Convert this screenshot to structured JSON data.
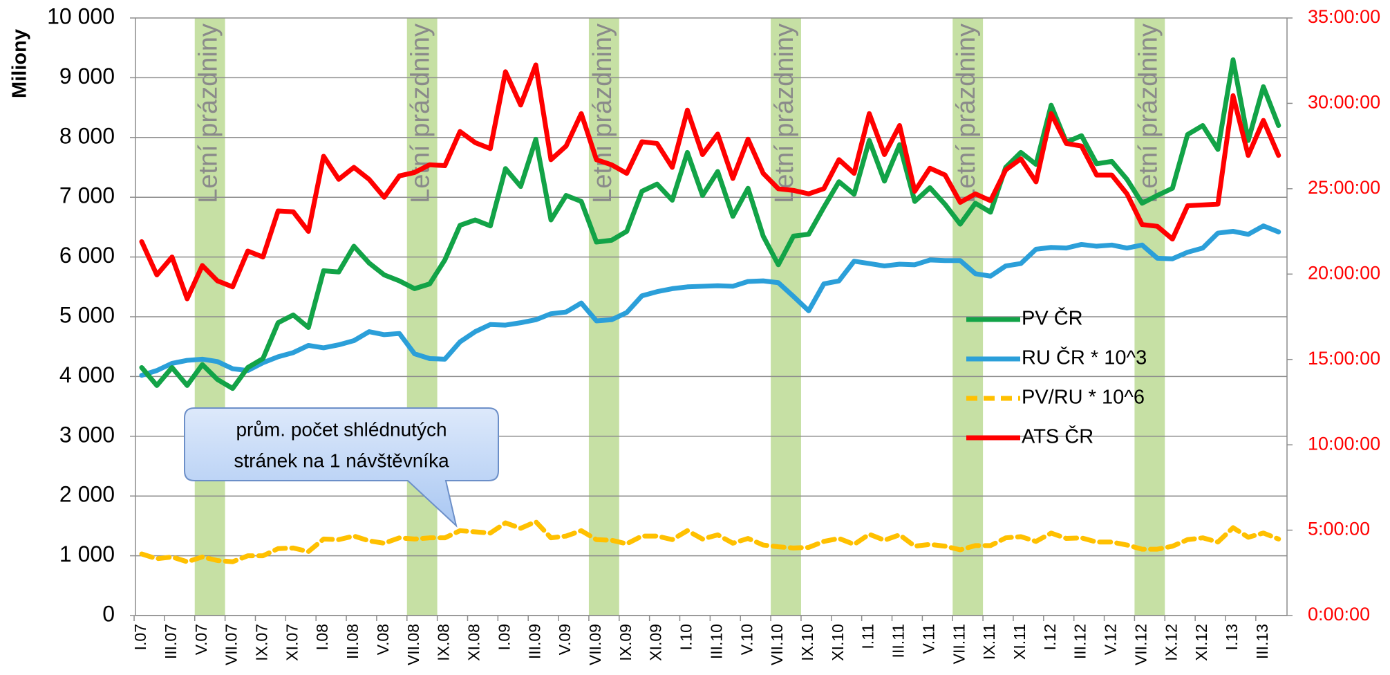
{
  "chart_data": {
    "type": "line",
    "y_label": "Miliony",
    "categories": [
      "I.07",
      null,
      "III.07",
      null,
      "V.07",
      null,
      "VII.07",
      null,
      "IX.07",
      null,
      "XI.07",
      null,
      "I.08",
      null,
      "III.08",
      null,
      "V.08",
      null,
      "VII.08",
      null,
      "IX.08",
      null,
      "XI.08",
      null,
      "I.09",
      null,
      "III.09",
      null,
      "V.09",
      null,
      "VII.09",
      null,
      "IX.09",
      null,
      "XI.09",
      null,
      "I.10",
      null,
      "III.10",
      null,
      "V.10",
      null,
      "VII.10",
      null,
      "IX.10",
      null,
      "XI.10",
      null,
      "I.11",
      null,
      "III.11",
      null,
      "V.11",
      null,
      "VII.11",
      null,
      "IX.11",
      null,
      "XI.11",
      null,
      "I.12",
      null,
      "III.12",
      null,
      "V.12",
      null,
      "VII.12",
      null,
      "IX.12",
      null,
      "XI.12",
      null,
      "I.13",
      null,
      "III.13",
      null
    ],
    "ylim": [
      0,
      10000
    ],
    "yticks": [
      0,
      {
        "value": 1000,
        "label": "1 000"
      },
      {
        "value": 2000,
        "label": "2 000"
      },
      {
        "value": 3000,
        "label": "3 000"
      },
      {
        "value": 4000,
        "label": "4 000"
      },
      {
        "value": 5000,
        "label": "5 000"
      },
      {
        "value": 6000,
        "label": "6 000"
      },
      {
        "value": 7000,
        "label": "7 000"
      },
      {
        "value": 8000,
        "label": "8 000"
      },
      {
        "value": 9000,
        "label": "9 000"
      },
      {
        "value": 10000,
        "label": "10 000"
      }
    ],
    "y2lim": [
      0,
      35
    ],
    "y2ticks": [
      {
        "value": 0,
        "label": "0:00:00"
      },
      {
        "value": 5,
        "label": "5:00:00"
      },
      {
        "value": 10,
        "label": "10:00:00"
      },
      {
        "value": 15,
        "label": "15:00:00"
      },
      {
        "value": 20,
        "label": "20:00:00"
      },
      {
        "value": 25,
        "label": "25:00:00"
      },
      {
        "value": 30,
        "label": "30:00:00"
      },
      {
        "value": 35,
        "label": "35:00:00"
      }
    ],
    "y2_color": "#ff0000",
    "grid": true,
    "legend": "center-right",
    "bands": [
      {
        "label": "Letní prázdniny",
        "start": 4,
        "end": 5
      },
      {
        "label": "Letní prázdniny",
        "start": 18,
        "end": 19
      },
      {
        "label": "Letní prázdniny",
        "start": 30,
        "end": 31
      },
      {
        "label": "Letní prázdniny",
        "start": 42,
        "end": 43
      },
      {
        "label": "Letní prázdniny",
        "start": 54,
        "end": 55
      },
      {
        "label": "Letní prázdniny",
        "start": 66,
        "end": 67
      }
    ],
    "band_color": "#c6e0a4",
    "annotation": [
      "prům. počet shlédnutých",
      "stránek na 1 návštěvníka"
    ],
    "series": [
      {
        "name": "PV ČR",
        "color": "#12a347",
        "style": "solid",
        "values": [
          4150,
          3850,
          4150,
          3850,
          4200,
          3950,
          3800,
          4150,
          4300,
          4900,
          5030,
          4820,
          5770,
          5750,
          6180,
          5900,
          5700,
          5600,
          5470,
          5550,
          5950,
          6530,
          6620,
          6520,
          7480,
          7180,
          7970,
          6620,
          7030,
          6930,
          6250,
          6280,
          6430,
          7100,
          7220,
          6950,
          7750,
          7030,
          7430,
          6680,
          7150,
          6350,
          5870,
          6350,
          6380,
          6830,
          7260,
          7050,
          7950,
          7270,
          7880,
          6930,
          7160,
          6880,
          6550,
          6900,
          6750,
          7500,
          7750,
          7550,
          8540,
          7920,
          8030,
          7560,
          7600,
          7300,
          6900,
          7030,
          7150,
          8050,
          8200,
          7800,
          9300,
          7950,
          8850,
          8200
        ]
      },
      {
        "name": "RU ČR * 10^3",
        "color": "#2b9fd9",
        "style": "solid",
        "values": [
          4020,
          4100,
          4220,
          4270,
          4290,
          4250,
          4130,
          4100,
          4230,
          4330,
          4400,
          4520,
          4480,
          4530,
          4600,
          4750,
          4700,
          4720,
          4380,
          4300,
          4290,
          4580,
          4750,
          4870,
          4860,
          4900,
          4950,
          5050,
          5080,
          5230,
          4930,
          4950,
          5070,
          5350,
          5420,
          5470,
          5500,
          5510,
          5520,
          5510,
          5590,
          5600,
          5570,
          5340,
          5100,
          5550,
          5600,
          5930,
          5890,
          5850,
          5880,
          5870,
          5950,
          5940,
          5940,
          5720,
          5680,
          5850,
          5890,
          6130,
          6160,
          6150,
          6210,
          6180,
          6200,
          6150,
          6200,
          5980,
          5970,
          6080,
          6150,
          6400,
          6430,
          6380,
          6520,
          6420
        ]
      },
      {
        "name": "PV/RU * 10^6",
        "color": "#ffc000",
        "style": "dashed",
        "values": [
          1030,
          950,
          980,
          900,
          980,
          920,
          900,
          1000,
          1000,
          1120,
          1130,
          1070,
          1280,
          1270,
          1330,
          1250,
          1210,
          1300,
          1280,
          1300,
          1300,
          1420,
          1400,
          1380,
          1550,
          1460,
          1570,
          1300,
          1330,
          1420,
          1270,
          1260,
          1200,
          1330,
          1330,
          1270,
          1420,
          1280,
          1350,
          1210,
          1290,
          1180,
          1150,
          1130,
          1140,
          1240,
          1290,
          1190,
          1360,
          1260,
          1350,
          1160,
          1190,
          1160,
          1100,
          1170,
          1170,
          1300,
          1320,
          1240,
          1380,
          1290,
          1300,
          1230,
          1230,
          1180,
          1110,
          1110,
          1160,
          1270,
          1300,
          1230,
          1470,
          1310,
          1380,
          1280
        ]
      },
      {
        "name": "ATS ČR",
        "color": "#ff0000",
        "style": "solid",
        "axis": "y2",
        "values": [
          21.9,
          19.95,
          21.0,
          18.55,
          20.5,
          19.6,
          19.25,
          21.35,
          21.0,
          23.7,
          23.65,
          22.5,
          26.9,
          25.55,
          26.25,
          25.55,
          24.5,
          25.75,
          25.95,
          26.4,
          26.35,
          28.35,
          27.7,
          27.35,
          31.85,
          29.9,
          32.25,
          26.7,
          27.5,
          29.4,
          26.7,
          26.4,
          25.9,
          27.75,
          27.65,
          26.25,
          29.6,
          27.0,
          28.2,
          25.6,
          27.9,
          25.9,
          25.0,
          24.9,
          24.7,
          25.0,
          26.7,
          25.9,
          29.4,
          27.0,
          28.7,
          24.85,
          26.2,
          25.8,
          24.2,
          24.7,
          24.3,
          26.1,
          26.75,
          25.4,
          29.4,
          27.65,
          27.5,
          25.8,
          25.8,
          24.7,
          22.9,
          22.8,
          22.05,
          24.0,
          24.05,
          24.1,
          30.45,
          26.95,
          29.0,
          26.95
        ]
      }
    ]
  }
}
